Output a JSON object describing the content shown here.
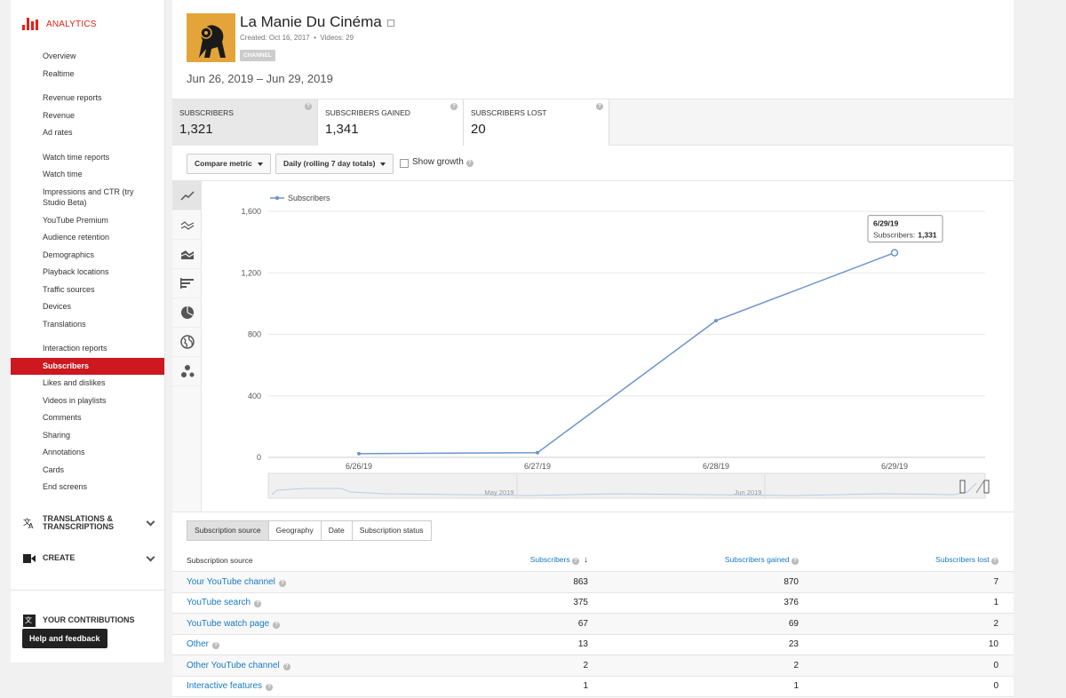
{
  "sidebar": {
    "brand": "ANALYTICS",
    "groups": [
      [
        "Overview",
        "Realtime"
      ],
      [
        "Revenue reports",
        "Revenue",
        "Ad rates"
      ],
      [
        "Watch time reports",
        "Watch time",
        "Impressions and CTR (try Studio Beta)",
        "YouTube Premium",
        "Audience retention",
        "Demographics",
        "Playback locations",
        "Traffic sources",
        "Devices",
        "Translations"
      ],
      [
        "Interaction reports",
        "Subscribers",
        "Likes and dislikes",
        "Videos in playlists",
        "Comments",
        "Sharing",
        "Annotations",
        "Cards",
        "End screens"
      ]
    ],
    "active": "Subscribers",
    "translations_label": "TRANSLATIONS & TRANSCRIPTIONS",
    "create_label": "CREATE",
    "contributions_label": "YOUR CONTRIBUTIONS",
    "help_label": "Help and feedback"
  },
  "channel": {
    "name": "La Manie Du Cinéma",
    "created": "Created: Oct 16, 2017",
    "videos": "Videos: 29",
    "badge": "CHANNEL",
    "date_range": "Jun 26, 2019 – Jun 29, 2019"
  },
  "metrics": [
    {
      "label": "SUBSCRIBERS",
      "value": "1,321"
    },
    {
      "label": "SUBSCRIBERS GAINED",
      "value": "1,341"
    },
    {
      "label": "SUBSCRIBERS LOST",
      "value": "20"
    }
  ],
  "controls": {
    "compare": "Compare metric",
    "period": "Daily (rolling 7 day totals)",
    "show_growth": "Show growth"
  },
  "chart_data": {
    "type": "line",
    "legend": "Subscribers",
    "x": [
      "6/26/19",
      "6/27/19",
      "6/28/19",
      "6/29/19"
    ],
    "series": [
      {
        "name": "Subscribers",
        "values": [
          24,
          30,
          889,
          1331
        ]
      }
    ],
    "ylim": [
      0,
      1600
    ],
    "yticks": [
      "0",
      "400",
      "800",
      "1,200",
      "1,600"
    ],
    "tooltip": {
      "date": "6/29/19",
      "label": "Subscribers:",
      "value": "1,331"
    },
    "navigator_labels": [
      "May 2019",
      "Jun 2019"
    ],
    "color": "#6d94cc"
  },
  "tabs": [
    "Subscription source",
    "Geography",
    "Date",
    "Subscription status"
  ],
  "table": {
    "headers": [
      "Subscription source",
      "Subscribers",
      "Subscribers gained",
      "Subscribers lost"
    ],
    "rows": [
      [
        "Your YouTube channel",
        "863",
        "870",
        "7"
      ],
      [
        "YouTube search",
        "375",
        "376",
        "1"
      ],
      [
        "YouTube watch page",
        "67",
        "69",
        "2"
      ],
      [
        "Other",
        "13",
        "23",
        "10"
      ],
      [
        "Other YouTube channel",
        "2",
        "2",
        "0"
      ],
      [
        "Interactive features",
        "1",
        "1",
        "0"
      ]
    ]
  }
}
